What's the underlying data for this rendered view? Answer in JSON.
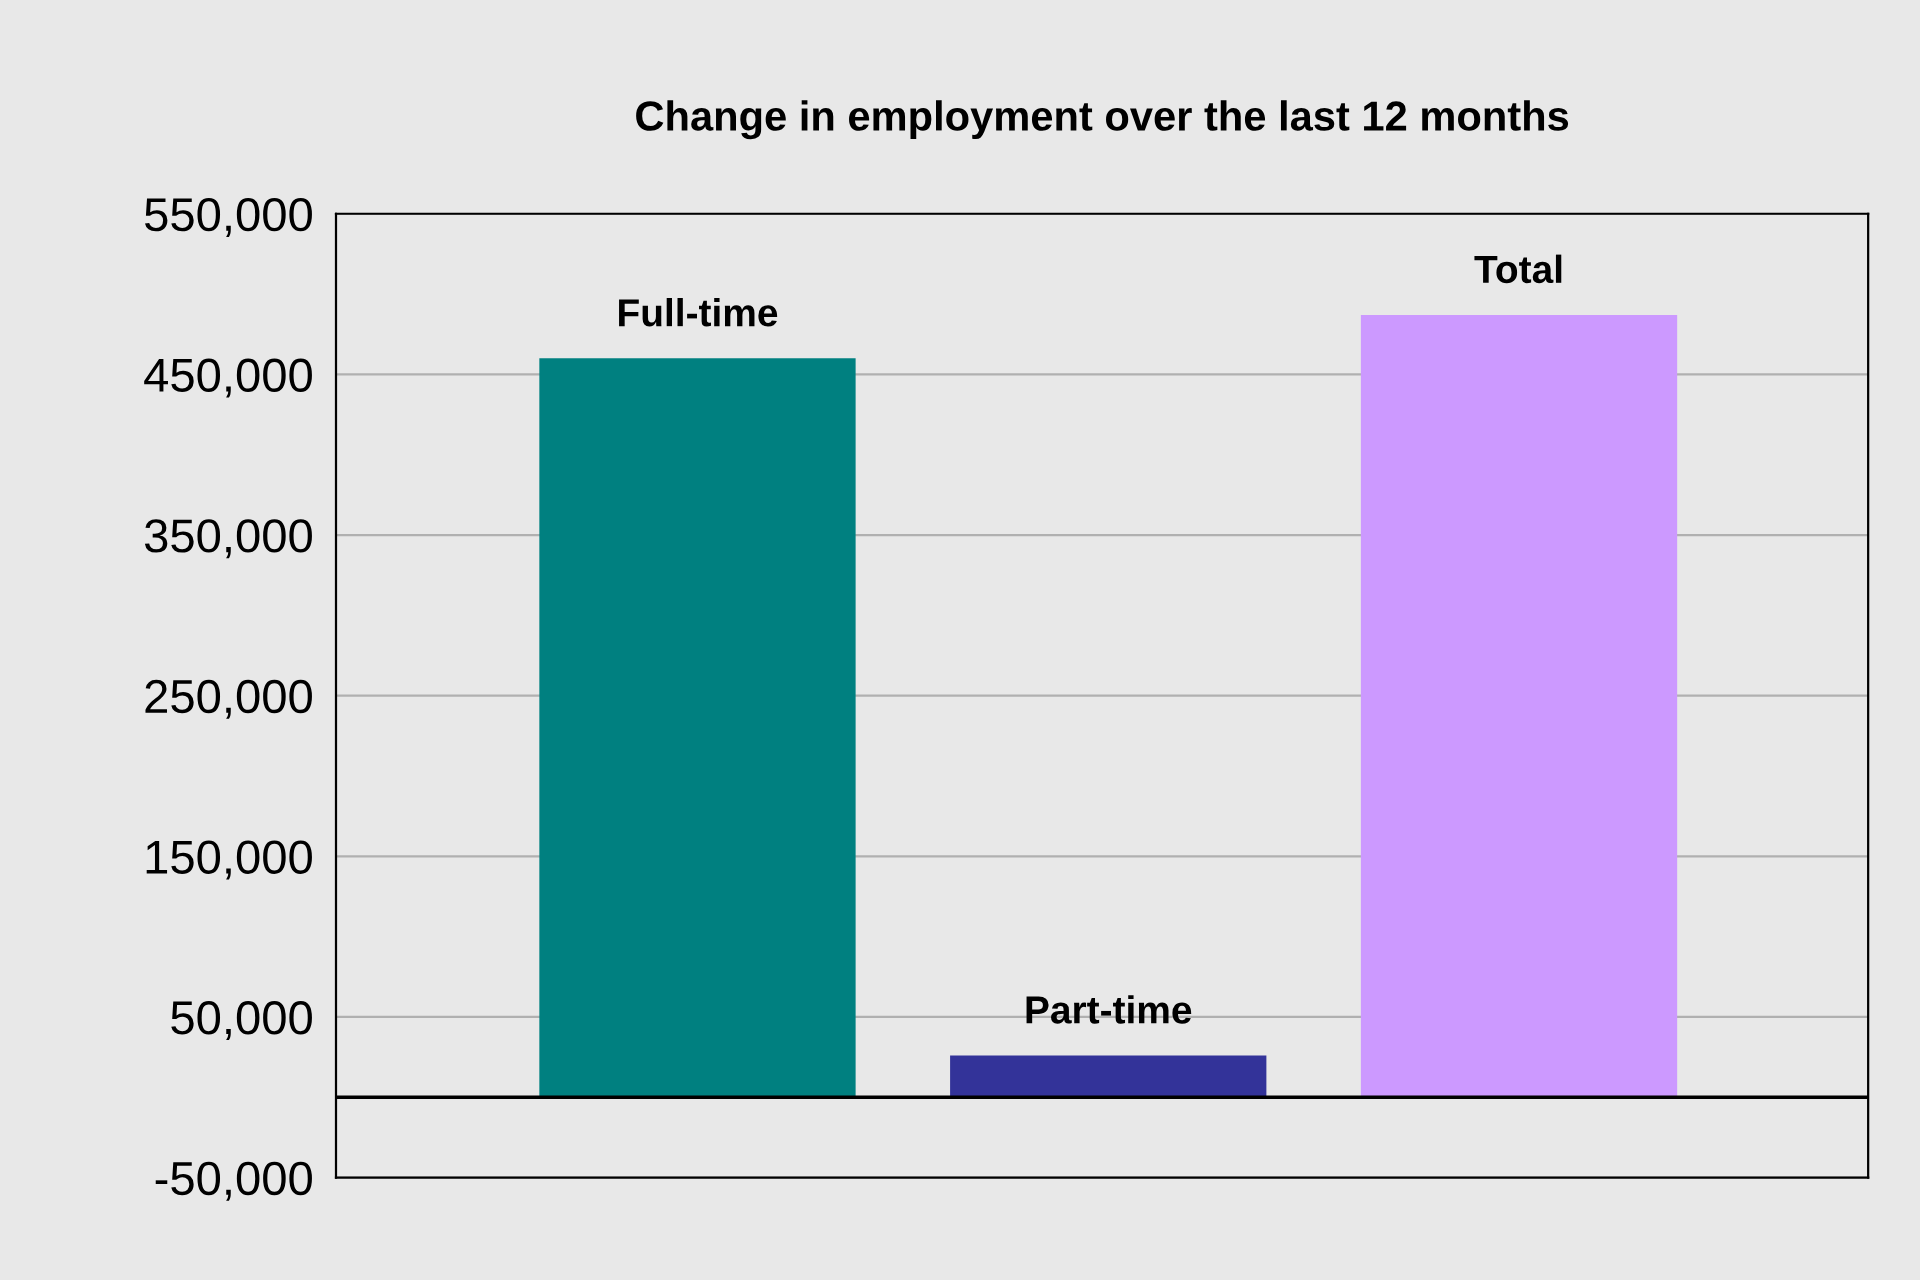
{
  "chart_data": {
    "type": "bar",
    "title": "Change in employment over the last 12 months",
    "categories": [
      "Full-time",
      "Part-time",
      "Total"
    ],
    "values": [
      460000,
      26000,
      487000
    ],
    "colors": [
      "#008080",
      "#333399",
      "#cc99ff"
    ],
    "ylim": [
      -50000,
      550000
    ],
    "yticks": [
      {
        "value": -50000,
        "label": "-50,000"
      },
      {
        "value": 50000,
        "label": "50,000"
      },
      {
        "value": 150000,
        "label": "150,000"
      },
      {
        "value": 250000,
        "label": "250,000"
      },
      {
        "value": 350000,
        "label": "350,000"
      },
      {
        "value": 450000,
        "label": "450,000"
      },
      {
        "value": 550000,
        "label": "550,000"
      }
    ],
    "grid": "y",
    "legend": false,
    "tick_labels": "y",
    "ref_lines": [
      {
        "axis": "y",
        "value": 0,
        "color": "#000000"
      }
    ]
  }
}
